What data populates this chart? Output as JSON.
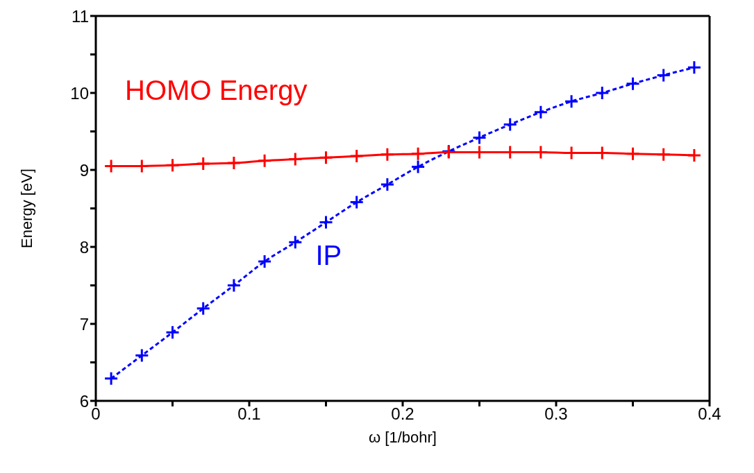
{
  "chart_data": {
    "type": "line",
    "xlabel": "ω [1/bohr]",
    "ylabel": "Energy [eV]",
    "x": [
      0.01,
      0.03,
      0.05,
      0.07,
      0.09,
      0.11,
      0.13,
      0.15,
      0.17,
      0.19,
      0.21,
      0.23,
      0.25,
      0.27,
      0.29,
      0.31,
      0.33,
      0.35,
      0.37,
      0.39
    ],
    "series": [
      {
        "name": "HOMO Energy",
        "color": "#ff0000",
        "line_style": "solid",
        "values": [
          9.05,
          9.05,
          9.06,
          9.08,
          9.09,
          9.12,
          9.14,
          9.16,
          9.18,
          9.2,
          9.21,
          9.23,
          9.23,
          9.23,
          9.23,
          9.22,
          9.22,
          9.21,
          9.2,
          9.19
        ]
      },
      {
        "name": "IP",
        "color": "#0000ff",
        "line_style": "dashed",
        "values": [
          6.29,
          6.59,
          6.89,
          7.2,
          7.5,
          7.81,
          8.06,
          8.32,
          8.58,
          8.81,
          9.04,
          9.24,
          9.42,
          9.59,
          9.75,
          9.89,
          10.0,
          10.12,
          10.23,
          10.33
        ]
      }
    ],
    "marker": "cross",
    "xlim": [
      0,
      0.4
    ],
    "xticks": [
      0,
      {
        "value": 0.05,
        "label": null
      },
      0.1,
      {
        "value": 0.15,
        "label": null
      },
      0.2,
      {
        "value": 0.25,
        "label": null
      },
      0.3,
      {
        "value": 0.35,
        "label": null
      },
      0.4
    ],
    "ylim": [
      6,
      11
    ],
    "yticks": [
      6,
      {
        "value": 6.5,
        "label": null
      },
      7,
      {
        "value": 7.5,
        "label": null
      },
      8,
      {
        "value": 8.5,
        "label": null
      },
      9,
      {
        "value": 9.5,
        "label": null
      },
      10,
      {
        "value": 10.5,
        "label": null
      },
      11
    ],
    "grid": false,
    "legend": false
  }
}
